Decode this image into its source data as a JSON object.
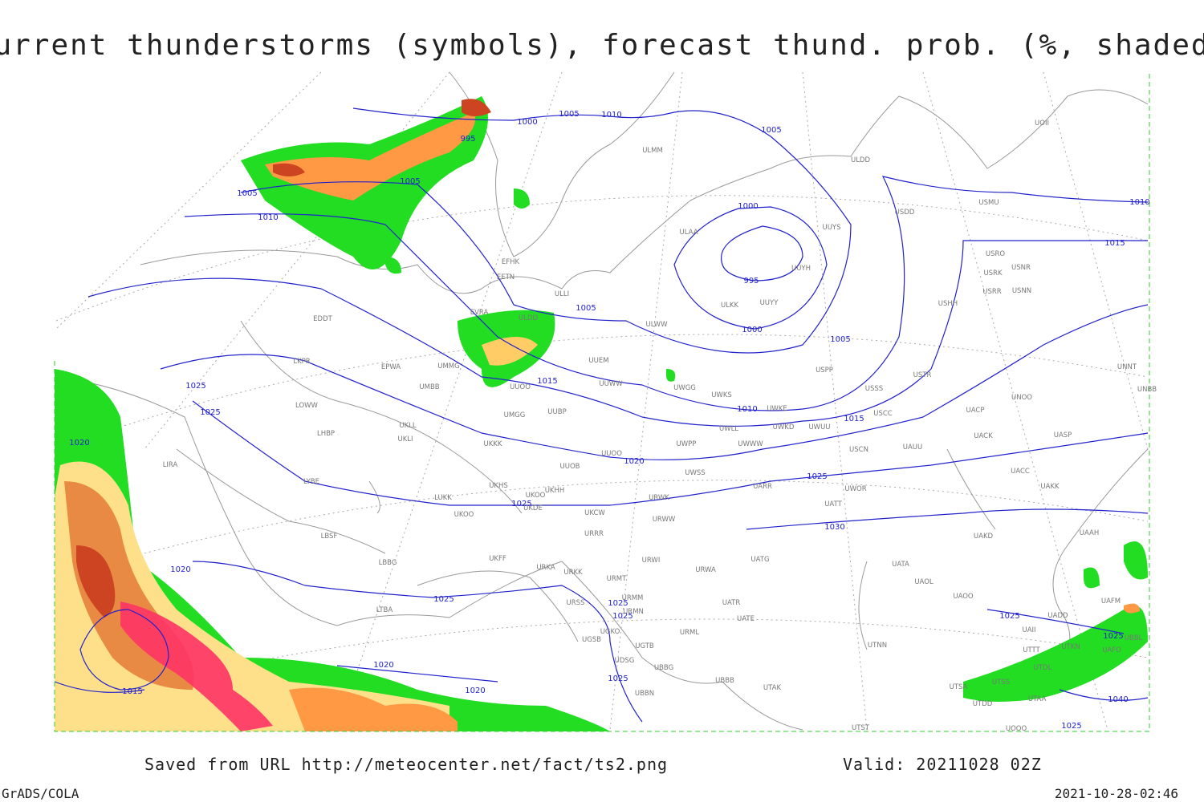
{
  "title": "Current thunderstorms (symbols), forecast thund. prob. (%, shaded)",
  "footer": {
    "saved": "Saved from URL http://meteocenter.net/fact/ts2.png",
    "valid": "Valid: 20211028 02Z",
    "software": "GrADS/COLA",
    "timestamp": "2021-10-28-02:46"
  },
  "isobar_labels": [
    1000,
    1005,
    1010,
    995,
    1005,
    1005,
    1010,
    1005,
    1000,
    995,
    1000,
    1005,
    1005,
    1015,
    1010,
    1015,
    1020,
    1025,
    1025,
    1030,
    1025,
    1025,
    1020,
    1020,
    1025,
    1025,
    1025,
    1025,
    1025,
    1020,
    1020,
    1015,
    1025,
    1025,
    1015,
    1010,
    1040
  ],
  "stations": [
    "ULMM",
    "ULDD",
    "USDD",
    "USMU",
    "UUYS",
    "ULAA",
    "EFHK",
    "EETN",
    "ULLI",
    "UUYH",
    "USRO",
    "USRK",
    "USNR",
    "USRR",
    "USNN",
    "USHH",
    "ULKK",
    "UUYY",
    "EVRA",
    "ULDD",
    "EDDT",
    "ULWW",
    "UUEM",
    "EPWA",
    "UMMG",
    "USPP",
    "USTR",
    "LKPR",
    "UUWW",
    "UWGG",
    "UWKS",
    "USSS",
    "UNOO",
    "UNNT",
    "UNBB",
    "UMBB",
    "UUOO",
    "UWKE",
    "USCC",
    "UACP",
    "LOWW",
    "UUBP",
    "UMGG",
    "UWLL",
    "UWKD",
    "UWUU",
    "UKLL",
    "UKLI",
    "LHBP",
    "UKKK",
    "UWPP",
    "UWWW",
    "USCN",
    "UAUU",
    "UACK",
    "UASP",
    "UUOO",
    "LIRA",
    "LYBE",
    "UUOB",
    "UWSS",
    "UAKK",
    "UACC",
    "UKHH",
    "UKHS",
    "UKOO",
    "UKDE",
    "UARR",
    "UWOR",
    "URWK",
    "LUKK",
    "UKOO",
    "UATT",
    "UKCW",
    "URWW",
    "LBSF",
    "URRR",
    "UAKD",
    "UAAH",
    "UKFF",
    "UATG",
    "URKA",
    "URWI",
    "URKK",
    "LBBG",
    "UATA",
    "URWA",
    "URMT",
    "UAOL",
    "UAOO",
    "UATR",
    "UATE",
    "URMM",
    "URSS",
    "LTBA",
    "URMN",
    "UGKO",
    "UAII",
    "UADD",
    "UAFM",
    "UGSB",
    "UGTB",
    "UBBL",
    "URML",
    "UTNN",
    "UTTT",
    "UTKN",
    "UAFO",
    "UDSG",
    "UBBG",
    "UTDL",
    "UBBB",
    "UTSS",
    "UTAK",
    "UBBN",
    "UTSA",
    "UTDD",
    "UTAA",
    "UTST",
    "UOOO",
    "UOII"
  ]
}
